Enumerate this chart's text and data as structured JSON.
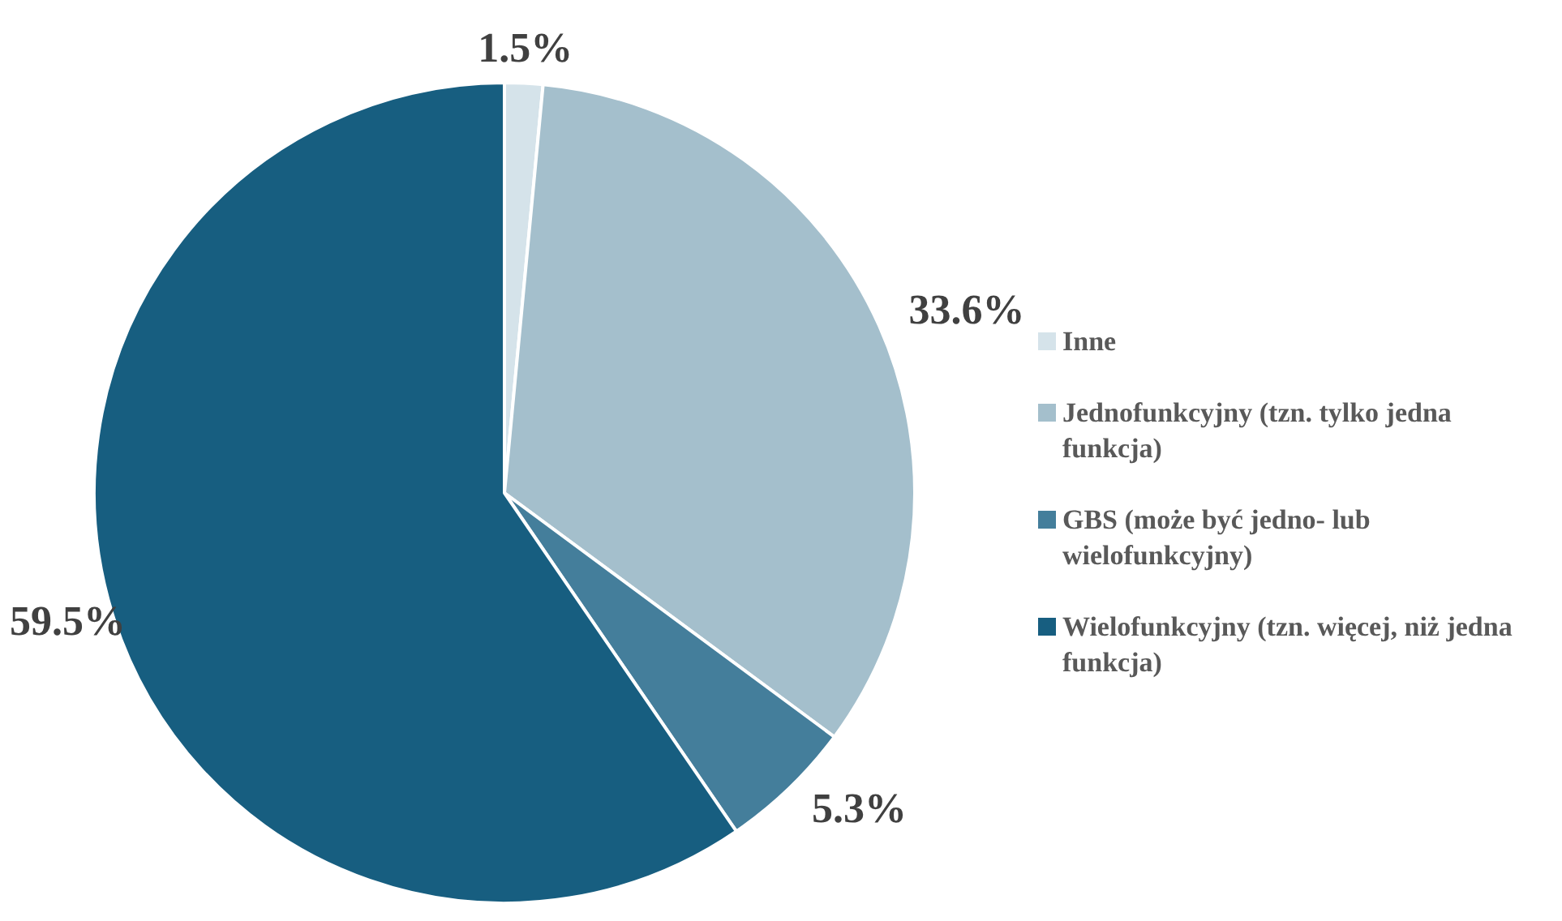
{
  "chart_data": {
    "type": "pie",
    "categories": [
      "Inne",
      "Jednofunkcyjny (tzn. tylko jedna funkcja)",
      "GBS (może być jedno- lub wielofunkcyjny)",
      "Wielofunkcyjny (tzn. więcej, niż jedna funkcja)"
    ],
    "values": [
      1.5,
      33.6,
      5.3,
      59.5
    ],
    "colors": [
      "#d5e3ea",
      "#a4bfcc",
      "#447e9b",
      "#175e80"
    ],
    "value_labels": [
      "1.5%",
      "33.6%",
      "5.3%",
      "59.5%"
    ],
    "legend": "right"
  }
}
